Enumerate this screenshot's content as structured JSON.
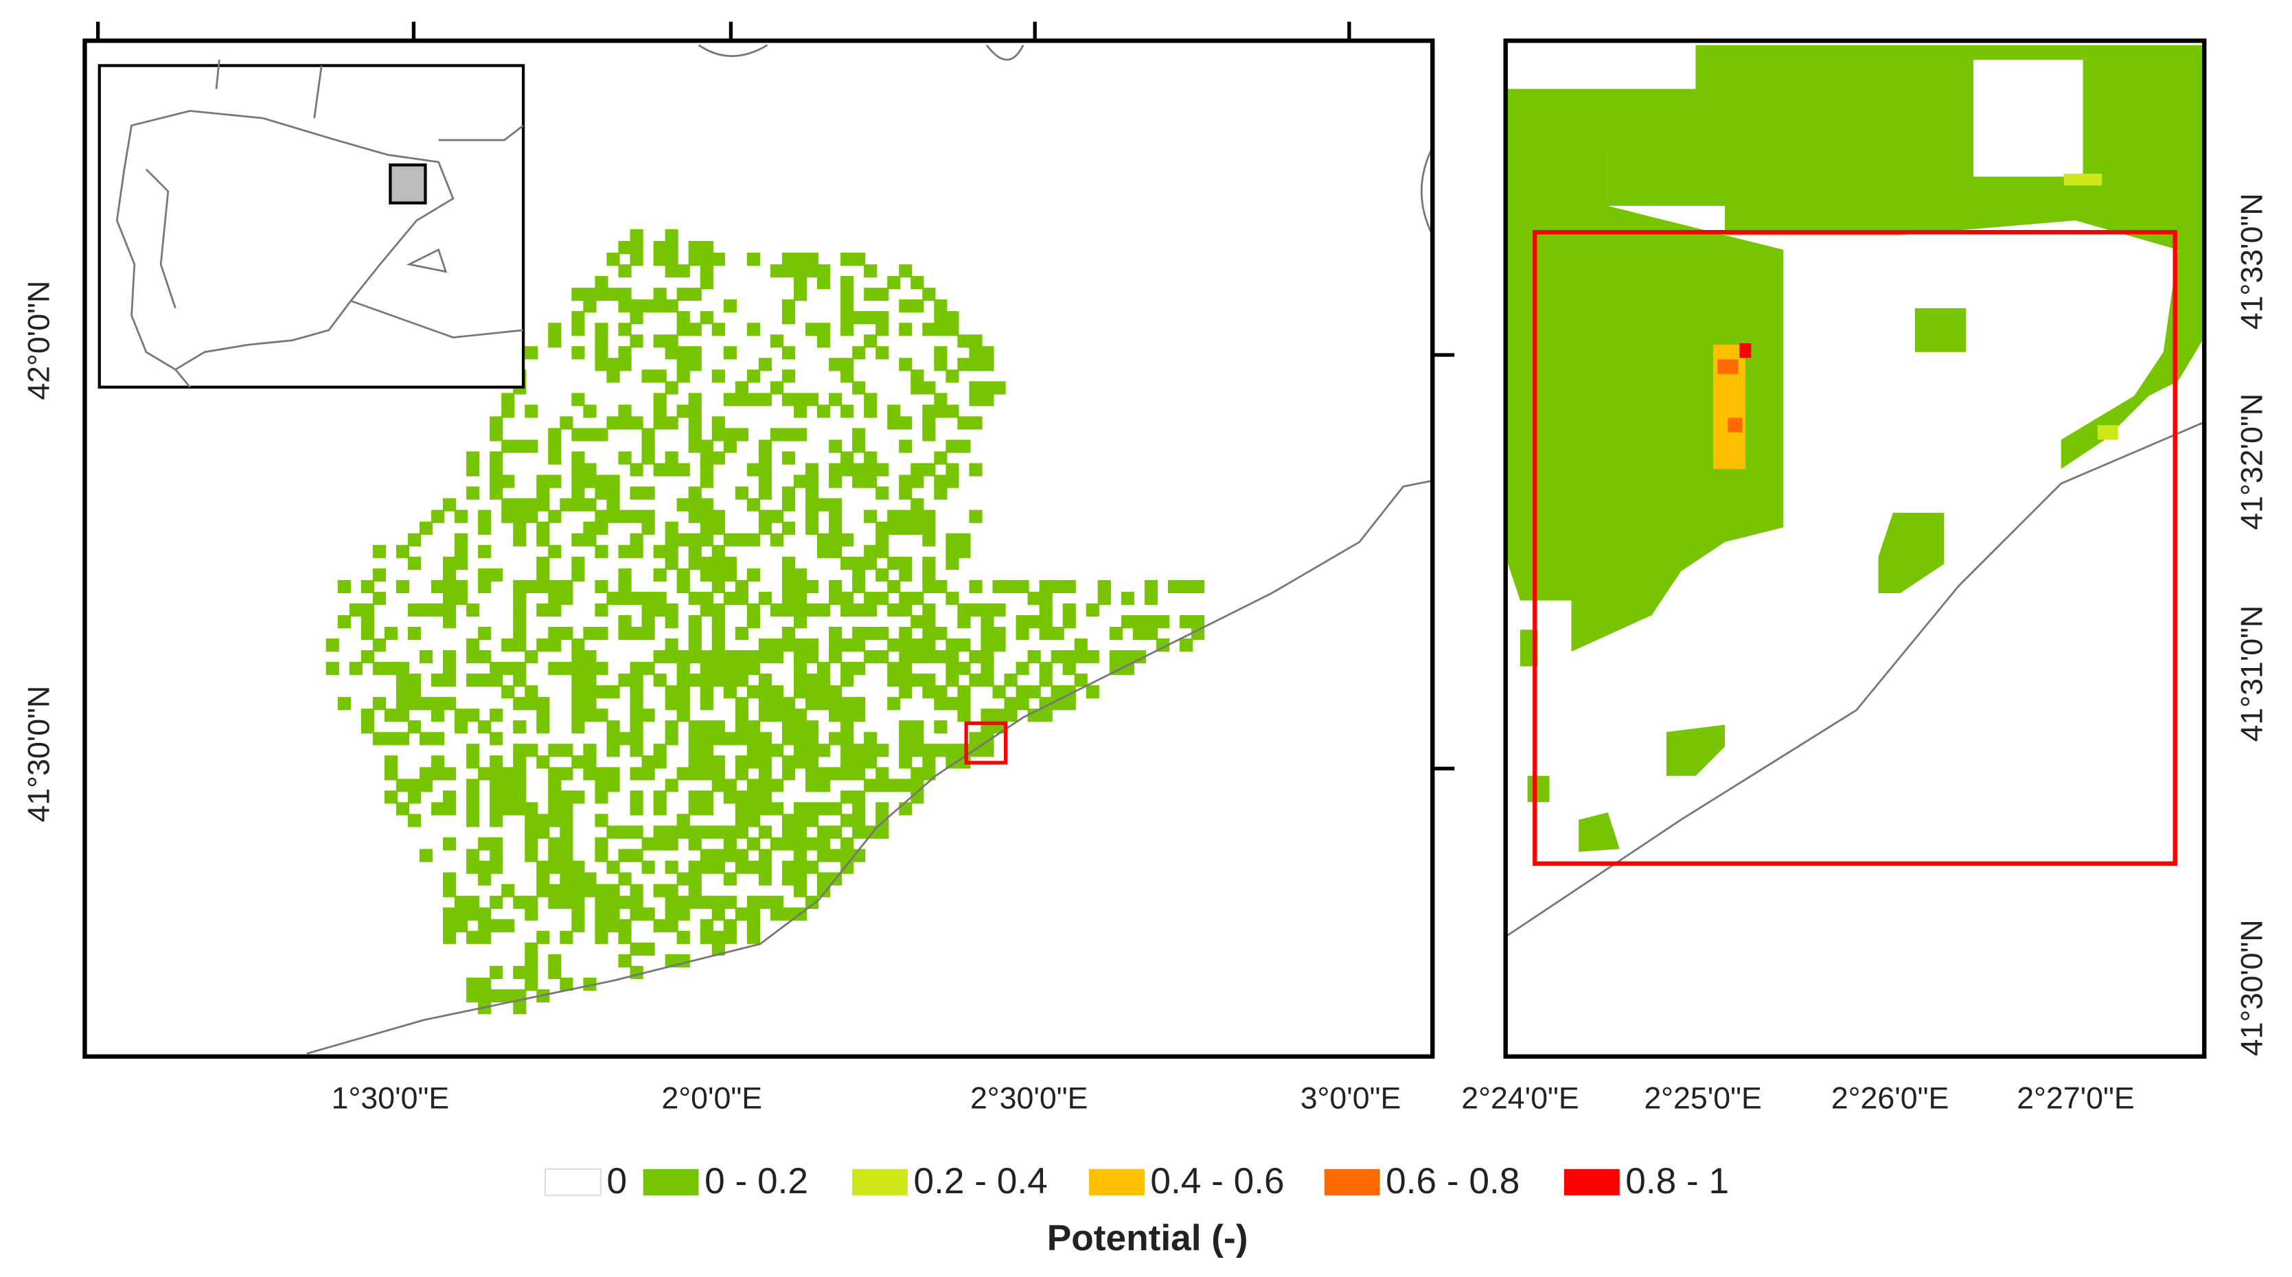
{
  "left_map": {
    "x_labels": [
      "1°30'0\"E",
      "2°0'0\"E",
      "2°30'0\"E",
      "3°0'0\"E"
    ],
    "y_labels": [
      "42°0'0\"N",
      "41°30'0\"N"
    ]
  },
  "right_map": {
    "x_labels": [
      "2°24'0\"E",
      "2°25'0\"E",
      "2°26'0\"E",
      "2°27'0\"E"
    ],
    "y_labels": [
      "41°33'0\"N",
      "41°32'0\"N",
      "41°31'0\"N",
      "41°30'0\"N"
    ]
  },
  "legend": {
    "title": "Potential (-)",
    "items": [
      {
        "label": "0",
        "color": "#ffffff"
      },
      {
        "label": "0 - 0.2",
        "color": "#77c400"
      },
      {
        "label": "0.2 - 0.4",
        "color": "#cfe619"
      },
      {
        "label": "0.4 - 0.6",
        "color": "#ffc000"
      },
      {
        "label": "0.6 - 0.8",
        "color": "#ff6a00"
      },
      {
        "label": "0.8 - 1",
        "color": "#ff0000"
      }
    ]
  }
}
